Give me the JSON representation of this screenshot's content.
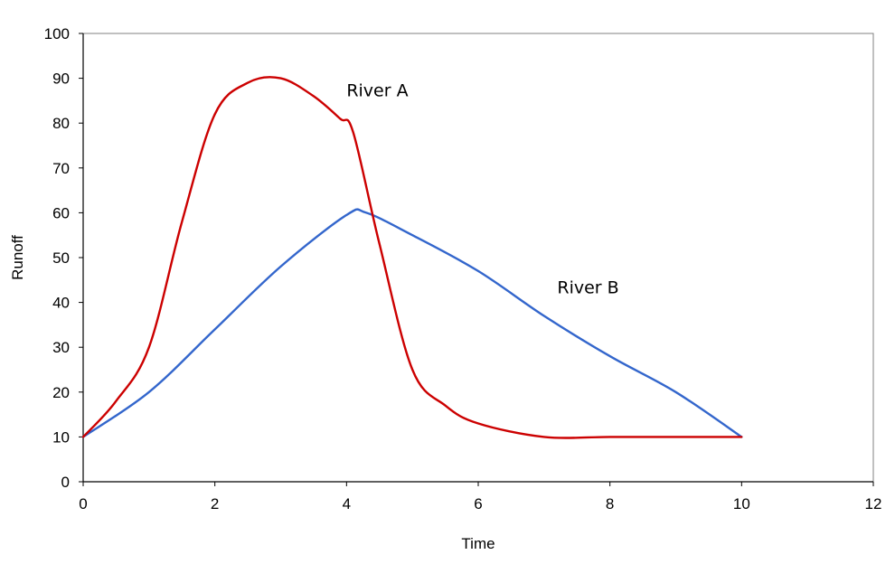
{
  "chart_data": {
    "type": "line",
    "title": "",
    "xlabel": "Time",
    "ylabel": "Runoff",
    "xlim": [
      0,
      12
    ],
    "ylim": [
      0,
      100
    ],
    "x_ticks": [
      "0",
      "2",
      "4",
      "6",
      "8",
      "10",
      "12"
    ],
    "y_ticks": [
      "0",
      "10",
      "20",
      "30",
      "40",
      "50",
      "60",
      "70",
      "80",
      "90",
      "100"
    ],
    "grid": false,
    "series": [
      {
        "name": "River A",
        "color": "#cc0000",
        "x": [
          0,
          0.5,
          1,
          1.5,
          2,
          2.5,
          3,
          3.5,
          3.9,
          4.1,
          4.5,
          5,
          5.5,
          6,
          7,
          8,
          9,
          10
        ],
        "y": [
          10,
          18,
          30,
          58,
          82,
          89,
          90,
          86,
          81,
          78,
          53,
          25,
          17,
          13,
          10,
          10,
          10,
          10
        ]
      },
      {
        "name": "River B",
        "color": "#3366cc",
        "x": [
          0,
          1,
          2,
          3,
          4,
          4.3,
          5,
          6,
          7,
          8,
          9,
          10
        ],
        "y": [
          10,
          20,
          34,
          48,
          59.5,
          60,
          55,
          47,
          37,
          28,
          20,
          10
        ]
      }
    ],
    "annotations": [
      {
        "text": "River A",
        "x": 4.0,
        "y": 86
      },
      {
        "text": "River B",
        "x": 7.2,
        "y": 42
      }
    ]
  }
}
